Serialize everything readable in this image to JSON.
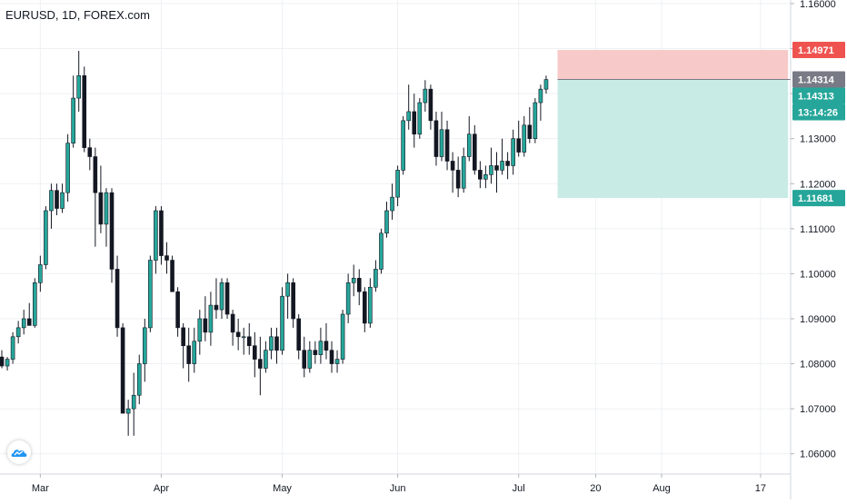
{
  "symbol_title": "EURUSD, 1D, FOREX.com",
  "colors": {
    "up": "#26a69a",
    "down": "#131722",
    "grid": "#eef0f3",
    "axis_text": "#131722",
    "stop_zone": "#f7c9c9",
    "target_zone": "#c8ebe6",
    "stop_tag": "#ef5350",
    "entry_tag": "#787b86",
    "price_tag": "#26a69a"
  },
  "icons": {
    "logo": "tradingview-cloud-icon"
  },
  "chart_data": {
    "type": "candlestick",
    "title": "EURUSD, 1D, FOREX.com",
    "ylim": [
      1.0555,
      1.1608
    ],
    "y_ticks": [
      "1.16000",
      "1.15000",
      "1.14000",
      "1.13000",
      "1.12000",
      "1.11000",
      "1.10000",
      "1.09000",
      "1.08000",
      "1.07000",
      "1.06000"
    ],
    "x_ticks": [
      {
        "label": "Mar",
        "index": 7
      },
      {
        "label": "Apr",
        "index": 29
      },
      {
        "label": "May",
        "index": 51
      },
      {
        "label": "Jun",
        "index": 72
      },
      {
        "label": "Jul",
        "index": 94
      },
      {
        "label": "20",
        "index": 108
      },
      {
        "label": "Aug",
        "index": 120
      },
      {
        "label": "17",
        "index": 138
      }
    ],
    "candles": [
      [
        1.0815,
        1.083,
        1.079,
        1.0795
      ],
      [
        1.0795,
        1.0815,
        1.0785,
        1.081
      ],
      [
        1.081,
        1.087,
        1.08,
        1.086
      ],
      [
        1.086,
        1.0895,
        1.0845,
        1.088
      ],
      [
        1.088,
        1.092,
        1.0865,
        1.09
      ],
      [
        1.09,
        1.0935,
        1.0885,
        1.0885
      ],
      [
        1.0885,
        1.099,
        1.088,
        1.098
      ],
      [
        1.098,
        1.104,
        1.096,
        1.102
      ],
      [
        1.102,
        1.115,
        1.101,
        1.114
      ],
      [
        1.114,
        1.12,
        1.11,
        1.1185
      ],
      [
        1.1185,
        1.12,
        1.113,
        1.1145
      ],
      [
        1.1145,
        1.12,
        1.1135,
        1.118
      ],
      [
        1.118,
        1.131,
        1.116,
        1.129
      ],
      [
        1.129,
        1.144,
        1.128,
        1.139
      ],
      [
        1.139,
        1.1495,
        1.136,
        1.144
      ],
      [
        1.144,
        1.146,
        1.127,
        1.128
      ],
      [
        1.128,
        1.13,
        1.123,
        1.126
      ],
      [
        1.126,
        1.128,
        1.106,
        1.118
      ],
      [
        1.118,
        1.124,
        1.109,
        1.111
      ],
      [
        1.111,
        1.119,
        1.106,
        1.118
      ],
      [
        1.118,
        1.119,
        1.098,
        1.101
      ],
      [
        1.101,
        1.104,
        1.086,
        1.088
      ],
      [
        1.088,
        1.089,
        1.07,
        1.069
      ],
      [
        1.069,
        1.072,
        1.064,
        1.07
      ],
      [
        1.07,
        1.078,
        1.064,
        1.073
      ],
      [
        1.073,
        1.082,
        1.071,
        1.08
      ],
      [
        1.08,
        1.09,
        1.076,
        1.088
      ],
      [
        1.088,
        1.104,
        1.087,
        1.103
      ],
      [
        1.103,
        1.115,
        1.1,
        1.114
      ],
      [
        1.114,
        1.115,
        1.102,
        1.104
      ],
      [
        1.104,
        1.107,
        1.1,
        1.103
      ],
      [
        1.103,
        1.104,
        1.096,
        1.096
      ],
      [
        1.096,
        1.097,
        1.086,
        1.088
      ],
      [
        1.088,
        1.089,
        1.079,
        1.084
      ],
      [
        1.084,
        1.088,
        1.076,
        1.08
      ],
      [
        1.08,
        1.088,
        1.078,
        1.085
      ],
      [
        1.085,
        1.092,
        1.082,
        1.09
      ],
      [
        1.09,
        1.095,
        1.085,
        1.087
      ],
      [
        1.087,
        1.096,
        1.084,
        1.093
      ],
      [
        1.093,
        1.099,
        1.09,
        1.092
      ],
      [
        1.092,
        1.099,
        1.09,
        1.098
      ],
      [
        1.098,
        1.099,
        1.09,
        1.091
      ],
      [
        1.091,
        1.092,
        1.084,
        1.087
      ],
      [
        1.087,
        1.09,
        1.083,
        1.086
      ],
      [
        1.086,
        1.088,
        1.082,
        1.086
      ],
      [
        1.086,
        1.089,
        1.082,
        1.084
      ],
      [
        1.084,
        1.087,
        1.077,
        1.081
      ],
      [
        1.081,
        1.086,
        1.073,
        1.079
      ],
      [
        1.079,
        1.085,
        1.078,
        1.083
      ],
      [
        1.083,
        1.088,
        1.081,
        1.086
      ],
      [
        1.086,
        1.088,
        1.08,
        1.083
      ],
      [
        1.083,
        1.097,
        1.082,
        1.095
      ],
      [
        1.095,
        1.1,
        1.09,
        1.098
      ],
      [
        1.098,
        1.099,
        1.088,
        1.09
      ],
      [
        1.09,
        1.091,
        1.081,
        1.083
      ],
      [
        1.083,
        1.086,
        1.077,
        1.079
      ],
      [
        1.079,
        1.085,
        1.078,
        1.083
      ],
      [
        1.083,
        1.085,
        1.08,
        1.082
      ],
      [
        1.082,
        1.088,
        1.08,
        1.085
      ],
      [
        1.085,
        1.089,
        1.081,
        1.083
      ],
      [
        1.083,
        1.085,
        1.078,
        1.08
      ],
      [
        1.08,
        1.083,
        1.078,
        1.081
      ],
      [
        1.081,
        1.092,
        1.08,
        1.091
      ],
      [
        1.091,
        1.1,
        1.089,
        1.098
      ],
      [
        1.098,
        1.102,
        1.095,
        1.099
      ],
      [
        1.099,
        1.101,
        1.093,
        1.096
      ],
      [
        1.096,
        1.097,
        1.087,
        1.089
      ],
      [
        1.089,
        1.099,
        1.088,
        1.097
      ],
      [
        1.097,
        1.103,
        1.096,
        1.101
      ],
      [
        1.101,
        1.11,
        1.1,
        1.109
      ],
      [
        1.109,
        1.116,
        1.108,
        1.114
      ],
      [
        1.114,
        1.12,
        1.112,
        1.117
      ],
      [
        1.117,
        1.124,
        1.115,
        1.123
      ],
      [
        1.123,
        1.135,
        1.122,
        1.134
      ],
      [
        1.134,
        1.142,
        1.132,
        1.136
      ],
      [
        1.136,
        1.14,
        1.128,
        1.131
      ],
      [
        1.131,
        1.139,
        1.13,
        1.138
      ],
      [
        1.138,
        1.143,
        1.136,
        1.141
      ],
      [
        1.141,
        1.142,
        1.132,
        1.134
      ],
      [
        1.134,
        1.136,
        1.124,
        1.126
      ],
      [
        1.126,
        1.136,
        1.125,
        1.132
      ],
      [
        1.132,
        1.134,
        1.123,
        1.125
      ],
      [
        1.125,
        1.127,
        1.118,
        1.123
      ],
      [
        1.123,
        1.126,
        1.117,
        1.119
      ],
      [
        1.119,
        1.128,
        1.118,
        1.126
      ],
      [
        1.126,
        1.135,
        1.125,
        1.131
      ],
      [
        1.131,
        1.133,
        1.122,
        1.123
      ],
      [
        1.123,
        1.125,
        1.119,
        1.121
      ],
      [
        1.121,
        1.124,
        1.119,
        1.122
      ],
      [
        1.122,
        1.128,
        1.12,
        1.124
      ],
      [
        1.124,
        1.127,
        1.118,
        1.123
      ],
      [
        1.123,
        1.13,
        1.122,
        1.125
      ],
      [
        1.125,
        1.127,
        1.121,
        1.124
      ],
      [
        1.124,
        1.132,
        1.122,
        1.13
      ],
      [
        1.13,
        1.134,
        1.126,
        1.127
      ],
      [
        1.127,
        1.135,
        1.126,
        1.133
      ],
      [
        1.133,
        1.137,
        1.129,
        1.13
      ],
      [
        1.13,
        1.139,
        1.129,
        1.138
      ],
      [
        1.138,
        1.142,
        1.134,
        1.141
      ],
      [
        1.141,
        1.144,
        1.14,
        1.14313
      ]
    ],
    "position": {
      "stop_price": 1.14971,
      "entry_price": 1.14314,
      "target_price": 1.11681,
      "start_index": 101,
      "end_index": 143
    },
    "price_labels": {
      "stop": "1.14971",
      "entry": "1.14314",
      "current": "1.14313",
      "countdown": "13:14:26",
      "target": "1.11681"
    }
  }
}
